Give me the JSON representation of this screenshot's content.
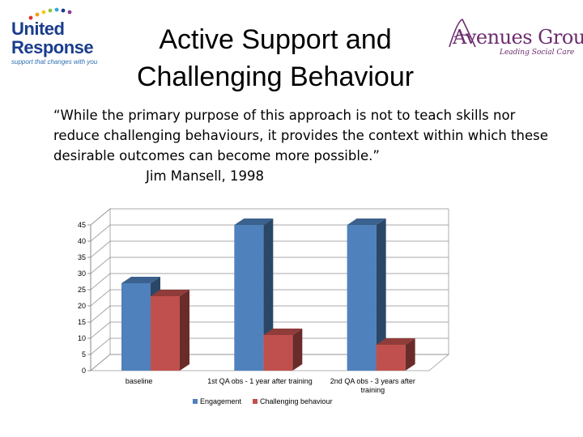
{
  "header": {
    "title_line1": "Active Support and",
    "title_line2": "Challenging Behaviour",
    "left_logo": {
      "line1": "United",
      "line2": "Response",
      "tagline": "support that changes with you"
    },
    "right_logo": {
      "name": "Avenues Group",
      "tagline": "Leading Social Care"
    }
  },
  "quote": {
    "text": "“While the primary purpose of this approach is not to teach skills nor reduce challenging behaviours, it provides the context within which these desirable outcomes can become more possible.”",
    "author": "Jim Mansell, 1998"
  },
  "colors": {
    "engagement": "#4f81bd",
    "challenging": "#c0504d",
    "united_blue": "#1a3d8c",
    "avenues_purple": "#6b2c6e"
  },
  "chart_data": {
    "type": "bar",
    "categories": [
      "baseline",
      "1st QA obs - 1 year after training",
      "2nd QA obs - 3 years after training"
    ],
    "category_lines": [
      [
        "baseline"
      ],
      [
        "1st QA obs - 1 year after training"
      ],
      [
        "2nd QA obs - 3 years after",
        "training"
      ]
    ],
    "series": [
      {
        "name": "Engagement",
        "values": [
          27,
          45,
          45
        ]
      },
      {
        "name": "Challenging behaviour",
        "values": [
          23,
          11,
          8
        ]
      }
    ],
    "ylim": [
      0,
      45
    ],
    "yticks": [
      0,
      5,
      10,
      15,
      20,
      25,
      30,
      35,
      40,
      45
    ],
    "grid": true,
    "three_d": true,
    "legend": "bottom",
    "title": "",
    "xlabel": "",
    "ylabel": ""
  }
}
